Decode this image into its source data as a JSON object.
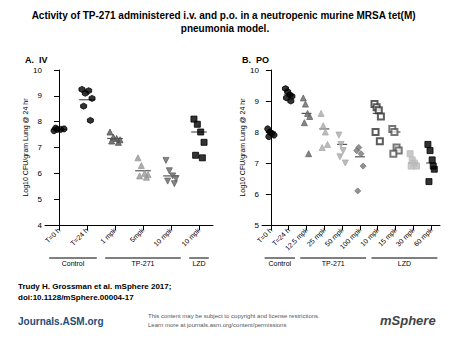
{
  "header": {
    "title": "Activity of TP-271 administered i.v. and p.o. in a neutropenic murine MRSA tet(M) pneumonia model."
  },
  "chart_data": [
    {
      "type": "scatter",
      "title": "A.  IV",
      "y_label": "Log10 CFU/gram Lung @ 24 hr",
      "categories": [
        "T=0 h",
        "T=24 h",
        "1 mpk",
        "5mpk",
        "10 mpk",
        "10 mpk"
      ],
      "groups": [
        {
          "label": "Control",
          "count": 2
        },
        {
          "label": "TP-271",
          "count": 3
        },
        {
          "label": "LZD",
          "count": 1
        }
      ],
      "values": [
        [
          7.65,
          7.7,
          7.7,
          7.72,
          7.75
        ],
        [
          9.25,
          9.1,
          9.2,
          8.9,
          8.6,
          8.05
        ],
        [
          7.6,
          7.4,
          7.35,
          7.3,
          7.25,
          7.2
        ],
        [
          6.6,
          6.3,
          6.0,
          5.95,
          5.9,
          5.85
        ],
        [
          6.5,
          6.1,
          5.9,
          5.8,
          5.7,
          5.6
        ],
        [
          8.1,
          7.9,
          7.6,
          7.2,
          6.7,
          6.6
        ]
      ],
      "means": [
        7.7,
        8.85,
        7.35,
        6.1,
        5.9,
        7.6
      ],
      "colors": [
        "#000000",
        "#000000",
        "#555555",
        "#999999",
        "#666666",
        "#000000"
      ],
      "markers": [
        "circle",
        "hexagon",
        "triangle",
        "triangle",
        "triangle_down",
        "square"
      ],
      "ylim": [
        4,
        10
      ],
      "yticks": [
        4,
        5,
        6,
        7,
        8,
        9,
        10
      ],
      "grid": false
    },
    {
      "type": "scatter",
      "title": "B.  PO",
      "y_label": "Log10 CFU/gram Lung @ 24 hr",
      "categories": [
        "T=0 h",
        "T=24 h",
        "12.5 mpk",
        "25 mpk",
        "50 mpk",
        "100 mpk",
        "10 mpk",
        "15 mpk",
        "30 mpk",
        "60 mpk"
      ],
      "groups": [
        {
          "label": "Control",
          "count": 2
        },
        {
          "label": "TP-271",
          "count": 4
        },
        {
          "label": "LZD",
          "count": 4
        }
      ],
      "values": [
        [
          8.1,
          8.0,
          7.95,
          7.9,
          7.85
        ],
        [
          9.4,
          9.3,
          9.2,
          9.15,
          9.1,
          9.0
        ],
        [
          9.1,
          8.9,
          8.6,
          8.5,
          8.3,
          7.3
        ],
        [
          8.6,
          8.2,
          8.0,
          7.6,
          7.5
        ],
        [
          7.9,
          7.6,
          7.4,
          7.0,
          7.2
        ],
        [
          7.4,
          7.5,
          7.3,
          6.9,
          6.1
        ],
        [
          8.9,
          8.8,
          8.7,
          8.5,
          8.0,
          7.7
        ],
        [
          8.1,
          8.0,
          7.5,
          7.4,
          7.3
        ],
        [
          7.3,
          7.1,
          7.0,
          6.9,
          6.9
        ],
        [
          7.6,
          7.4,
          7.1,
          6.8,
          6.4,
          6.9
        ]
      ],
      "means": [
        8.0,
        9.2,
        8.6,
        8.1,
        7.6,
        7.2,
        8.6,
        8.0,
        7.0,
        7.0
      ],
      "colors": [
        "#000000",
        "#000000",
        "#666666",
        "#aaaaaa",
        "#aaaaaa",
        "#777777",
        "#333333",
        "#555555",
        "#bbbbbb",
        "#000000"
      ],
      "markers": [
        "circle",
        "hexagon",
        "triangle",
        "triangle",
        "triangle_down",
        "diamond",
        "open_square",
        "open_square",
        "square",
        "square"
      ],
      "ylim": [
        5,
        10
      ],
      "yticks": [
        5,
        6,
        7,
        8,
        9,
        10
      ],
      "grid": false
    }
  ],
  "footer": {
    "citation": "Trudy H. Grossman et al. mSphere 2017;",
    "doi": "doi:10.1128/mSphere.00004-17",
    "site": "Journals.ASM.org",
    "notice": [
      "This content may be subject to copyright and license restrictions.",
      "Learn more at journals.asm.org/content/permissions"
    ],
    "logo": "mSphere"
  }
}
